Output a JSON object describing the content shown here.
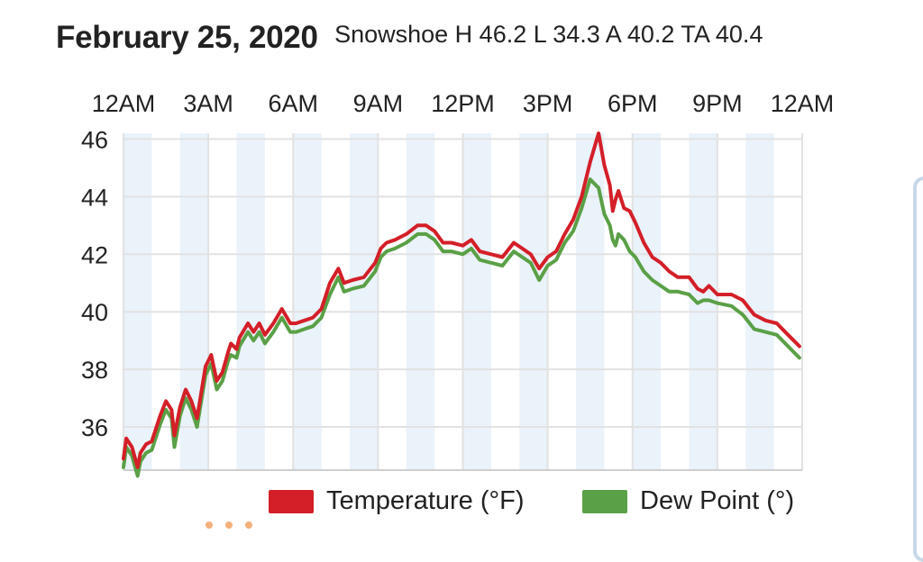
{
  "header": {
    "date": "February 25, 2020",
    "stats": "Snowshoe H 46.2 L 34.3 A 40.2 TA 40.4"
  },
  "legend": {
    "temperature": "Temperature (°F)",
    "dew_point": "Dew Point (°)"
  },
  "colors": {
    "temperature": "#d41f28",
    "dew_point": "#5aa046",
    "band": "#eaf2fa",
    "grid": "#e2e2e2"
  },
  "chart_data": {
    "type": "line",
    "x_tick_labels": [
      "12AM",
      "3AM",
      "6AM",
      "9AM",
      "12PM",
      "3PM",
      "6PM",
      "9PM",
      "12AM"
    ],
    "xlim_hours": [
      0,
      24
    ],
    "ylim": [
      34.5,
      46.2
    ],
    "y_ticks": [
      36,
      38,
      40,
      42,
      44,
      46
    ],
    "grid": true,
    "legend_position": "bottom",
    "series": [
      {
        "name": "Temperature (°F)",
        "color": "#d41f28",
        "x_hours": [
          0,
          0.1,
          0.3,
          0.5,
          0.6,
          0.8,
          1.0,
          1.3,
          1.5,
          1.7,
          1.8,
          2.0,
          2.2,
          2.4,
          2.6,
          2.9,
          3.1,
          3.3,
          3.5,
          3.7,
          3.8,
          4.0,
          4.1,
          4.4,
          4.6,
          4.8,
          5.0,
          5.3,
          5.6,
          5.9,
          6.1,
          6.4,
          6.7,
          7.0,
          7.3,
          7.6,
          7.8,
          8.1,
          8.5,
          8.9,
          9.1,
          9.3,
          9.6,
          10.0,
          10.4,
          10.7,
          11.0,
          11.3,
          11.6,
          12.0,
          12.3,
          12.6,
          13.0,
          13.4,
          13.8,
          14.1,
          14.4,
          14.7,
          15.0,
          15.3,
          15.6,
          15.9,
          16.2,
          16.5,
          16.8,
          17.0,
          17.2,
          17.3,
          17.4,
          17.5,
          17.7,
          17.9,
          18.1,
          18.4,
          18.7,
          19.0,
          19.3,
          19.6,
          20.0,
          20.3,
          20.5,
          20.7,
          21.0,
          21.5,
          21.9,
          22.3,
          22.7,
          23.1,
          23.5,
          23.9
        ],
        "values": [
          34.9,
          35.6,
          35.3,
          34.6,
          35.1,
          35.4,
          35.5,
          36.4,
          36.9,
          36.6,
          35.7,
          36.7,
          37.3,
          36.9,
          36.3,
          38.1,
          38.5,
          37.6,
          37.9,
          38.6,
          38.9,
          38.7,
          39.1,
          39.6,
          39.3,
          39.6,
          39.2,
          39.6,
          40.1,
          39.6,
          39.6,
          39.7,
          39.8,
          40.1,
          41.0,
          41.5,
          41.0,
          41.1,
          41.2,
          41.7,
          42.2,
          42.4,
          42.5,
          42.7,
          43.0,
          43.0,
          42.8,
          42.4,
          42.4,
          42.3,
          42.5,
          42.1,
          42.0,
          41.9,
          42.4,
          42.2,
          42.0,
          41.5,
          41.9,
          42.1,
          42.7,
          43.2,
          44.0,
          45.2,
          46.2,
          45.1,
          44.4,
          43.5,
          43.9,
          44.2,
          43.6,
          43.5,
          43.1,
          42.4,
          41.9,
          41.7,
          41.4,
          41.2,
          41.2,
          40.8,
          40.7,
          40.9,
          40.6,
          40.6,
          40.4,
          39.9,
          39.7,
          39.6,
          39.2,
          38.8
        ]
      },
      {
        "name": "Dew Point (°)",
        "color": "#5aa046",
        "x_hours": [
          0,
          0.1,
          0.3,
          0.5,
          0.6,
          0.8,
          1.0,
          1.3,
          1.5,
          1.7,
          1.8,
          2.0,
          2.2,
          2.4,
          2.6,
          2.9,
          3.1,
          3.3,
          3.5,
          3.7,
          3.8,
          4.0,
          4.1,
          4.4,
          4.6,
          4.8,
          5.0,
          5.3,
          5.6,
          5.9,
          6.1,
          6.4,
          6.7,
          7.0,
          7.3,
          7.6,
          7.8,
          8.1,
          8.5,
          8.9,
          9.1,
          9.3,
          9.6,
          10.0,
          10.4,
          10.7,
          11.0,
          11.3,
          11.6,
          12.0,
          12.3,
          12.6,
          13.0,
          13.4,
          13.8,
          14.1,
          14.4,
          14.7,
          15.0,
          15.3,
          15.6,
          15.9,
          16.2,
          16.5,
          16.8,
          17.0,
          17.2,
          17.3,
          17.4,
          17.5,
          17.7,
          17.9,
          18.1,
          18.4,
          18.7,
          19.0,
          19.3,
          19.6,
          20.0,
          20.3,
          20.5,
          20.7,
          21.0,
          21.5,
          21.9,
          22.3,
          22.7,
          23.1,
          23.5,
          23.9
        ],
        "values": [
          34.6,
          35.3,
          35.0,
          34.3,
          34.8,
          35.1,
          35.2,
          36.1,
          36.6,
          36.3,
          35.3,
          36.4,
          37.0,
          36.6,
          36.0,
          37.8,
          38.2,
          37.3,
          37.6,
          38.3,
          38.5,
          38.4,
          38.8,
          39.3,
          39.0,
          39.3,
          38.9,
          39.3,
          39.8,
          39.3,
          39.3,
          39.4,
          39.5,
          39.8,
          40.6,
          41.2,
          40.7,
          40.8,
          40.9,
          41.4,
          41.9,
          42.1,
          42.2,
          42.4,
          42.7,
          42.7,
          42.5,
          42.1,
          42.1,
          42.0,
          42.2,
          41.8,
          41.7,
          41.6,
          42.1,
          41.9,
          41.7,
          41.1,
          41.6,
          41.8,
          42.4,
          42.8,
          43.6,
          44.6,
          44.3,
          43.4,
          43.0,
          42.5,
          42.3,
          42.7,
          42.5,
          42.1,
          41.9,
          41.4,
          41.1,
          40.9,
          40.7,
          40.7,
          40.6,
          40.3,
          40.4,
          40.4,
          40.3,
          40.2,
          39.9,
          39.4,
          39.3,
          39.2,
          38.8,
          38.4
        ]
      }
    ]
  }
}
